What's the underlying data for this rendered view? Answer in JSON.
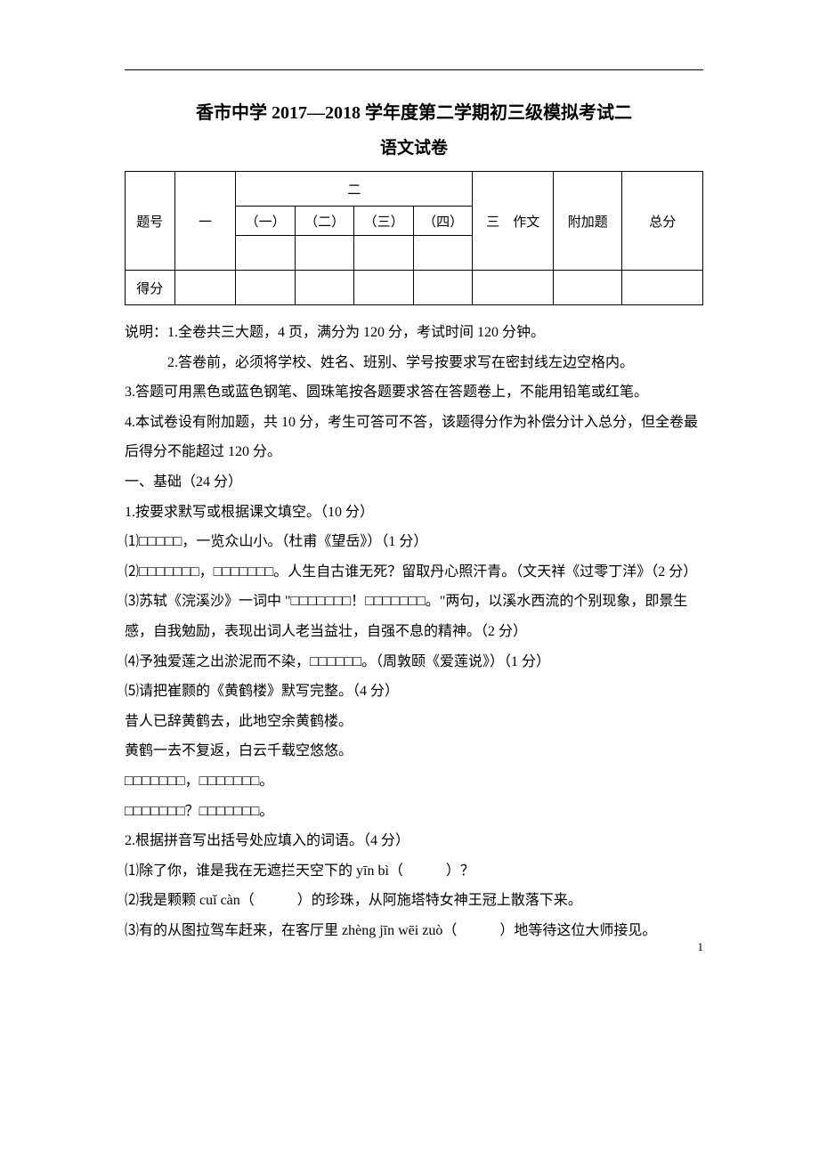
{
  "header": {
    "title": "香市中学 2017—2018 学年度第二学期初三级模拟考试二",
    "subtitle": "语文试卷"
  },
  "score_table": {
    "row_label_1": "题号",
    "row_label_2": "得分",
    "col_one": "一",
    "col_two": "二",
    "sub_cols": [
      "（一）",
      "（二）",
      "（三）",
      "（四）"
    ],
    "col_three": "三　作文",
    "col_extra": "附加题",
    "col_total": "总分"
  },
  "instructions": {
    "line1": "说明：1.全卷共三大题，4 页，满分为 120 分，考试时间 120 分钟。",
    "line2": "2.答卷前，必须将学校、姓名、班别、学号按要求写在密封线左边空格内。",
    "line3": "3.答题可用黑色或蓝色钢笔、圆珠笔按各题要求答在答题卷上，不能用铅笔或红笔。",
    "line4": "4.本试卷设有附加题，共 10 分，考生可答可不答，该题得分作为补偿分计入总分，但全卷最后得分不能超过 120 分。"
  },
  "section1": {
    "heading": "一、基础（24 分）",
    "q1": {
      "stem": "1.按要求默写或根据课文填空。（10 分）",
      "i1": "⑴□□□□□，一览众山小。（杜甫《望岳》）（1 分）",
      "i2": "⑵□□□□□□□，□□□□□□□。人生自古谁无死？留取丹心照汗青。（文天祥《过零丁洋》（2 分）",
      "i3": "⑶苏轼《浣溪沙》一词中 \"□□□□□□□！□□□□□□□。\"两句，以溪水西流的个别现象，即景生感，自我勉励，表现出词人老当益壮，自强不息的精神。（2 分）",
      "i4": "⑷予独爱莲之出淤泥而不染，□□□□□□。（周敦颐《爱莲说》）（1 分）",
      "i5": "⑸请把崔颢的《黄鹤楼》默写完整。（4 分）",
      "i5a": "昔人已辞黄鹤去，此地空余黄鹤楼。",
      "i5b": "黄鹤一去不复返，白云千载空悠悠。",
      "i5c": "□□□□□□□，□□□□□□□。",
      "i5d": "□□□□□□□？□□□□□□□。"
    },
    "q2": {
      "stem": "2.根据拼音写出括号处应填入的词语。（4 分）",
      "i1_pre": "⑴除了你，谁是我在无遮拦天空下的 ",
      "i1_pinyin": "yīn  bì",
      "i1_post": "（　　　）？",
      "i2_pre": "⑵我是颗颗 ",
      "i2_pinyin": "cuǐ  càn",
      "i2_post": "（　　　）的珍珠，从阿施塔特女神王冠上散落下来。",
      "i3_pre": "⑶有的从图拉驾车赶来，在客厅里 ",
      "i3_pinyin": "zhèng jīn wēi zuò",
      "i3_post": "（　　　）地等待这位大师接见。"
    }
  },
  "page_number": "1"
}
